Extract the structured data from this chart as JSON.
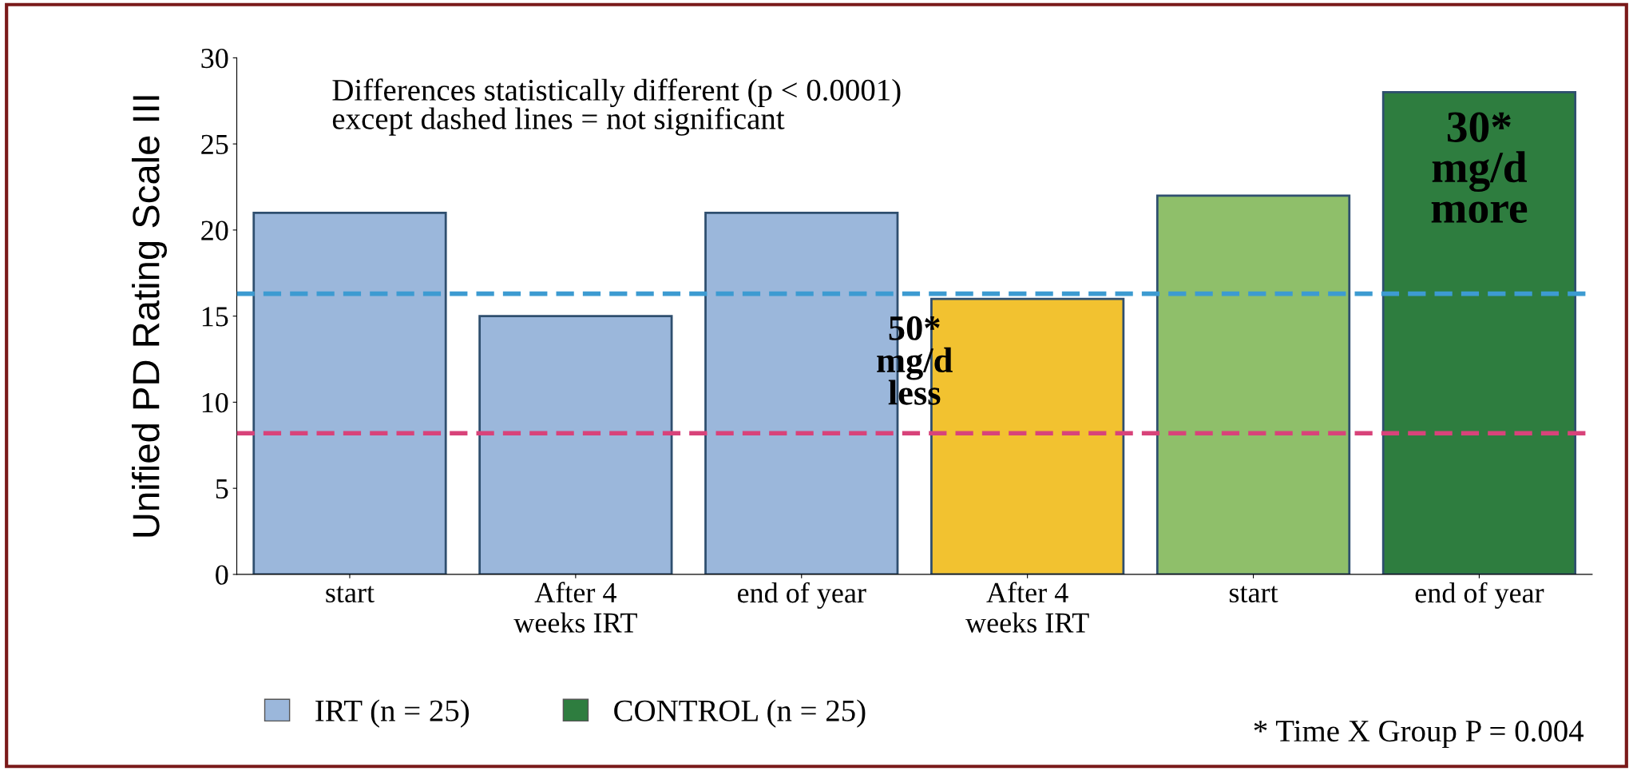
{
  "chart_data": {
    "type": "bar",
    "ylabel": "Unified PD Rating Scale III",
    "categories": [
      "start",
      "After 4\nweeks IRT",
      "end of year",
      "After 4\nweeks IRT",
      "start",
      "end of year"
    ],
    "series": [
      {
        "name": "IRT (n = 25)",
        "color": "#9bb7db",
        "values": [
          21,
          15,
          21,
          null,
          null,
          null
        ]
      },
      {
        "name": "CONTROL (n = 25)",
        "color": "#2e7d3f",
        "colors": [
          null,
          null,
          null,
          "#f2c230",
          "#8fbf6a",
          null
        ],
        "values": [
          null,
          null,
          null,
          16,
          22,
          28
        ]
      }
    ],
    "ylim": [
      0,
      30
    ],
    "yticks": [
      0,
      5,
      10,
      15,
      20,
      25,
      30
    ],
    "grid": false,
    "legend": "bottom",
    "ref_lines": [
      {
        "axis": "y",
        "value": 16.3,
        "color": "#3d9bd1",
        "line_style": "dashed"
      },
      {
        "axis": "y",
        "value": 8.2,
        "color": "#d8437a",
        "line_style": "dashed"
      }
    ],
    "annotations": [
      "Differences statistically different (p < 0.0001)\nexcept dashed lines = not significant",
      "50*\nmg/d\nless",
      "30*\nmg/d\nmore",
      "* Time X Group P = 0.004"
    ]
  }
}
